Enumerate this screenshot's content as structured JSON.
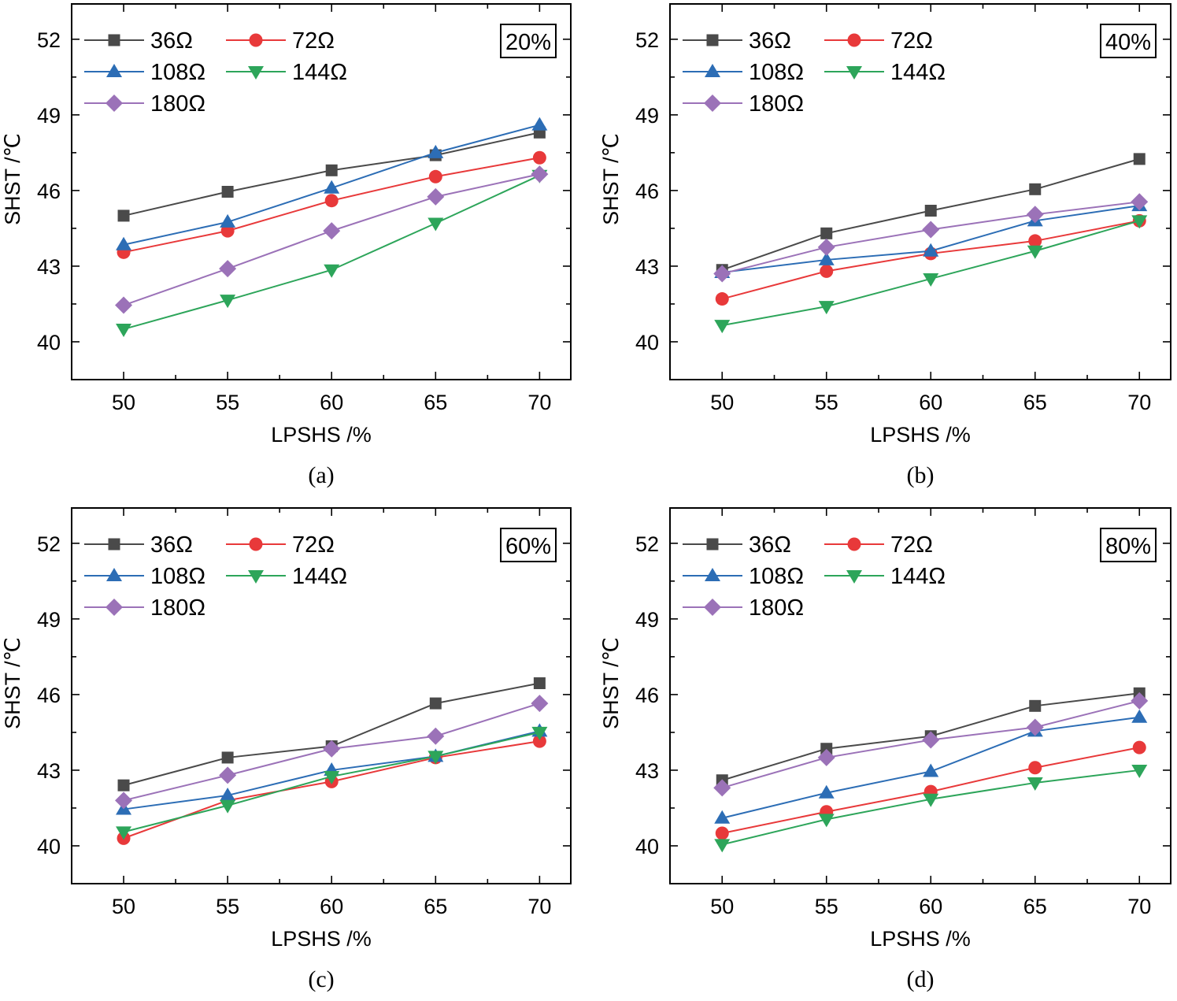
{
  "chart_data": [
    {
      "type": "line",
      "panel": "(a)",
      "tag": "20%",
      "xlabel": "LPSHS /%",
      "ylabel": "SHST /℃",
      "x": [
        50,
        55,
        60,
        65,
        70
      ],
      "x_tick_labels": [
        "50",
        "55",
        "60",
        "65",
        "70"
      ],
      "y_ticks": [
        40,
        43,
        46,
        49,
        52
      ],
      "y_tick_labels": [
        "40",
        "43",
        "46",
        "49",
        "52"
      ],
      "xlim": [
        47.5,
        71.5
      ],
      "ylim": [
        38.5,
        53.4
      ],
      "legend_position": "top-left",
      "series": [
        {
          "name": "36Ω",
          "color": "#4a4a4a",
          "marker": "square",
          "values": [
            45.0,
            45.95,
            46.8,
            47.4,
            48.3
          ]
        },
        {
          "name": "72Ω",
          "color": "#e8393a",
          "marker": "circle",
          "values": [
            43.55,
            44.4,
            45.6,
            46.55,
            47.3
          ]
        },
        {
          "name": "108Ω",
          "color": "#2c6db5",
          "marker": "triangle-up",
          "values": [
            43.85,
            44.75,
            46.1,
            47.5,
            48.6
          ]
        },
        {
          "name": "144Ω",
          "color": "#2da55a",
          "marker": "triangle-down",
          "values": [
            40.5,
            41.65,
            42.85,
            44.7,
            46.6
          ]
        },
        {
          "name": "180Ω",
          "color": "#9b72b8",
          "marker": "diamond",
          "values": [
            41.45,
            42.9,
            44.4,
            45.75,
            46.65
          ]
        }
      ]
    },
    {
      "type": "line",
      "panel": "(b)",
      "tag": "40%",
      "xlabel": "LPSHS /%",
      "ylabel": "SHST /℃",
      "x": [
        50,
        55,
        60,
        65,
        70
      ],
      "x_tick_labels": [
        "50",
        "55",
        "60",
        "65",
        "70"
      ],
      "y_ticks": [
        40,
        43,
        46,
        49,
        52
      ],
      "y_tick_labels": [
        "40",
        "43",
        "46",
        "49",
        "52"
      ],
      "xlim": [
        47.5,
        71.5
      ],
      "ylim": [
        38.5,
        53.4
      ],
      "legend_position": "top-left",
      "series": [
        {
          "name": "36Ω",
          "color": "#4a4a4a",
          "marker": "square",
          "values": [
            42.85,
            44.3,
            45.2,
            46.05,
            47.25
          ]
        },
        {
          "name": "72Ω",
          "color": "#e8393a",
          "marker": "circle",
          "values": [
            41.7,
            42.8,
            43.5,
            44.0,
            44.8
          ]
        },
        {
          "name": "108Ω",
          "color": "#2c6db5",
          "marker": "triangle-up",
          "values": [
            42.75,
            43.25,
            43.6,
            44.8,
            45.4
          ]
        },
        {
          "name": "144Ω",
          "color": "#2da55a",
          "marker": "triangle-down",
          "values": [
            40.65,
            41.4,
            42.5,
            43.6,
            44.8
          ]
        },
        {
          "name": "180Ω",
          "color": "#9b72b8",
          "marker": "diamond",
          "values": [
            42.7,
            43.75,
            44.45,
            45.05,
            45.55
          ]
        }
      ]
    },
    {
      "type": "line",
      "panel": "(c)",
      "tag": "60%",
      "xlabel": "LPSHS /%",
      "ylabel": "SHST /℃",
      "x": [
        50,
        55,
        60,
        65,
        70
      ],
      "x_tick_labels": [
        "50",
        "55",
        "60",
        "65",
        "70"
      ],
      "y_ticks": [
        40,
        43,
        46,
        49,
        52
      ],
      "y_tick_labels": [
        "40",
        "43",
        "46",
        "49",
        "52"
      ],
      "xlim": [
        47.5,
        71.5
      ],
      "ylim": [
        38.5,
        53.4
      ],
      "legend_position": "top-left",
      "series": [
        {
          "name": "36Ω",
          "color": "#4a4a4a",
          "marker": "square",
          "values": [
            42.4,
            43.5,
            43.95,
            45.65,
            46.45
          ]
        },
        {
          "name": "72Ω",
          "color": "#e8393a",
          "marker": "circle",
          "values": [
            40.3,
            41.8,
            42.55,
            43.5,
            44.15
          ]
        },
        {
          "name": "108Ω",
          "color": "#2c6db5",
          "marker": "triangle-up",
          "values": [
            41.45,
            42.0,
            43.0,
            43.55,
            44.55
          ]
        },
        {
          "name": "144Ω",
          "color": "#2da55a",
          "marker": "triangle-down",
          "values": [
            40.55,
            41.6,
            42.75,
            43.55,
            44.5
          ]
        },
        {
          "name": "180Ω",
          "color": "#9b72b8",
          "marker": "diamond",
          "values": [
            41.8,
            42.8,
            43.85,
            44.35,
            45.65
          ]
        }
      ]
    },
    {
      "type": "line",
      "panel": "(d)",
      "tag": "80%",
      "xlabel": "LPSHS /%",
      "ylabel": "SHST /℃",
      "x": [
        50,
        55,
        60,
        65,
        70
      ],
      "x_tick_labels": [
        "50",
        "55",
        "60",
        "65",
        "70"
      ],
      "y_ticks": [
        40,
        43,
        46,
        49,
        52
      ],
      "y_tick_labels": [
        "40",
        "43",
        "46",
        "49",
        "52"
      ],
      "xlim": [
        47.5,
        71.5
      ],
      "ylim": [
        38.5,
        53.4
      ],
      "legend_position": "top-left",
      "series": [
        {
          "name": "36Ω",
          "color": "#4a4a4a",
          "marker": "square",
          "values": [
            42.6,
            43.85,
            44.35,
            45.55,
            46.05
          ]
        },
        {
          "name": "72Ω",
          "color": "#e8393a",
          "marker": "circle",
          "values": [
            40.5,
            41.35,
            42.15,
            43.1,
            43.9
          ]
        },
        {
          "name": "108Ω",
          "color": "#2c6db5",
          "marker": "triangle-up",
          "values": [
            41.1,
            42.1,
            42.95,
            44.55,
            45.1
          ]
        },
        {
          "name": "144Ω",
          "color": "#2da55a",
          "marker": "triangle-down",
          "values": [
            40.05,
            41.05,
            41.85,
            42.5,
            43.0
          ]
        },
        {
          "name": "180Ω",
          "color": "#9b72b8",
          "marker": "diamond",
          "values": [
            42.3,
            43.5,
            44.2,
            44.7,
            45.75
          ]
        }
      ]
    }
  ]
}
